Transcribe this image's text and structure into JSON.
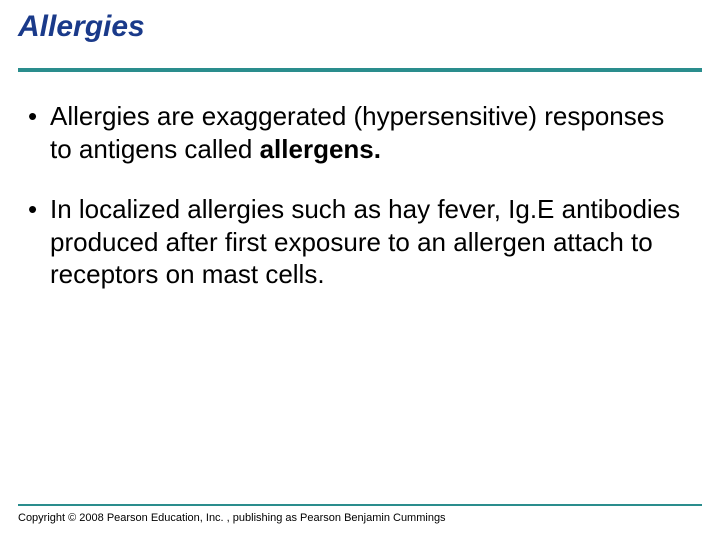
{
  "title": "Allergies",
  "title_color": "#1a3a8a",
  "title_fontsize": 30,
  "rule_color": "#2a8d8d",
  "body_fontsize": 26,
  "body_color": "#000000",
  "background_color": "#ffffff",
  "bullets": [
    {
      "pre": "Allergies are exaggerated (hypersensitive) responses to antigens called ",
      "bold": "allergens.",
      "post": ""
    },
    {
      "pre": "In localized allergies such as hay fever, Ig.E antibodies produced after first exposure to an allergen attach to receptors on mast cells.",
      "bold": "",
      "post": ""
    }
  ],
  "copyright": "Copyright © 2008 Pearson Education, Inc. , publishing as Pearson Benjamin Cummings"
}
